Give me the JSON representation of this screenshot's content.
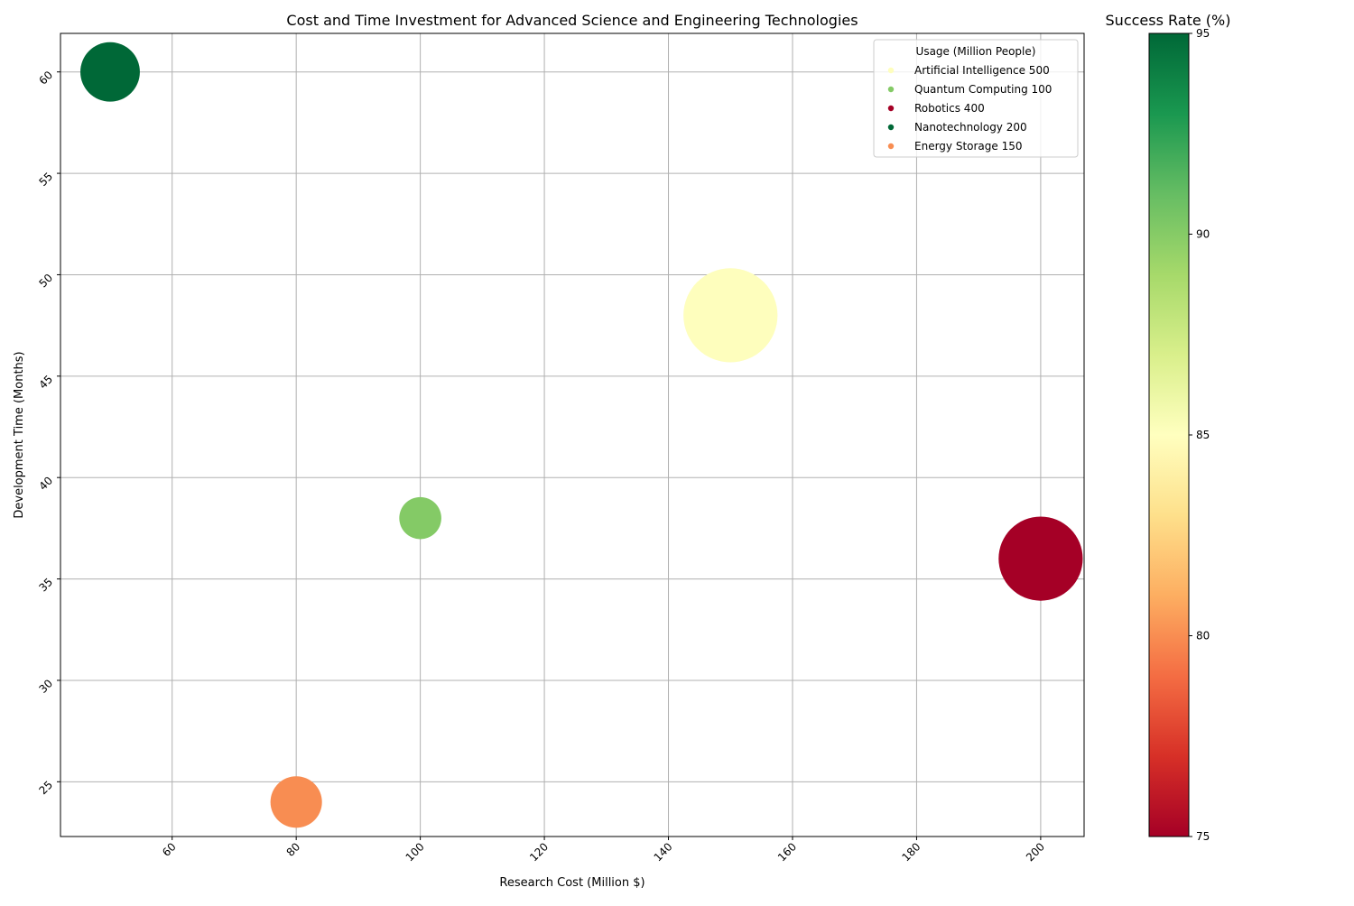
{
  "chart_data": {
    "type": "scatter",
    "title": "Cost and Time Investment for Advanced Science and Engineering Technologies",
    "xlabel": "Research Cost (Million $)",
    "ylabel": "Development Time (Months)",
    "xlim": [
      42,
      207
    ],
    "ylim": [
      22.3,
      61.9
    ],
    "xticks": [
      60,
      80,
      100,
      120,
      140,
      160,
      180,
      200
    ],
    "yticks": [
      25,
      30,
      35,
      40,
      45,
      50,
      55,
      60
    ],
    "grid": true,
    "size_encoding": "Usage (Million People)",
    "color_encoding": "Success Rate (%)",
    "points": [
      {
        "name": "Artificial Intelligence",
        "x": 150,
        "y": 48,
        "usage": 500,
        "success_rate": 85,
        "color": "#fefebd"
      },
      {
        "name": "Quantum Computing",
        "x": 100,
        "y": 38,
        "usage": 100,
        "success_rate": 90,
        "color": "#84ca66"
      },
      {
        "name": "Robotics",
        "x": 200,
        "y": 36,
        "usage": 400,
        "success_rate": 75,
        "color": "#a50026"
      },
      {
        "name": "Nanotechnology",
        "x": 50,
        "y": 60,
        "usage": 200,
        "success_rate": 95,
        "color": "#006837"
      },
      {
        "name": "Energy Storage",
        "x": 80,
        "y": 24,
        "usage": 150,
        "success_rate": 80,
        "color": "#f88d52"
      }
    ],
    "legend": {
      "title": "Usage (Million People)",
      "placement": "top-right",
      "entries": [
        {
          "label": "Artificial Intelligence 500",
          "color": "#fefebd"
        },
        {
          "label": "Quantum Computing 100",
          "color": "#84ca66"
        },
        {
          "label": "Robotics 400",
          "color": "#a50026"
        },
        {
          "label": "Nanotechnology 200",
          "color": "#006837"
        },
        {
          "label": "Energy Storage 150",
          "color": "#f88d52"
        }
      ]
    },
    "colorbar": {
      "title": "Success Rate (%)",
      "range": [
        75,
        95
      ],
      "ticks": [
        75,
        80,
        85,
        90,
        95
      ],
      "colormap": "RdYlGn",
      "stops": [
        "#a50026",
        "#d73027",
        "#f46d43",
        "#fdae61",
        "#fee08b",
        "#ffffbf",
        "#d9ef8b",
        "#a6d96a",
        "#66bd63",
        "#1a9850",
        "#006837"
      ]
    }
  }
}
